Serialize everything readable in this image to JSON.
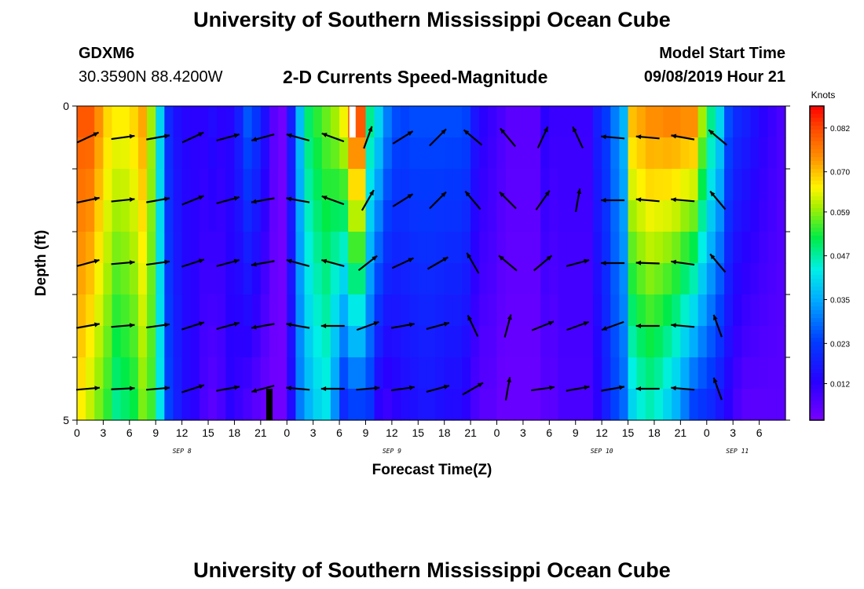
{
  "page": {
    "title_top": "University of Southern Mississippi Ocean Cube",
    "title_bottom": "University of Southern Mississippi Ocean Cube",
    "station_id": "GDXM6",
    "station_coords": "30.3590N 88.4200W",
    "chart_title": "2-D Currents Speed-Magnitude",
    "model_start_label": "Model Start Time",
    "model_start_value": "09/08/2019 Hour 21"
  },
  "chart_data": {
    "type": "heatmap",
    "title": "2-D Currents Speed-Magnitude",
    "xlabel": "Forecast Time(Z)",
    "ylabel": "Depth (ft)",
    "xlim": [
      0,
      81
    ],
    "ylim": [
      0,
      5
    ],
    "x_ticks": [
      {
        "hour": 0,
        "label": "0"
      },
      {
        "hour": 3,
        "label": "3"
      },
      {
        "hour": 6,
        "label": "6"
      },
      {
        "hour": 9,
        "label": "9"
      },
      {
        "hour": 12,
        "label": "12"
      },
      {
        "hour": 15,
        "label": "15"
      },
      {
        "hour": 18,
        "label": "18"
      },
      {
        "hour": 21,
        "label": "21"
      },
      {
        "hour": 24,
        "label": "0"
      },
      {
        "hour": 27,
        "label": "3"
      },
      {
        "hour": 30,
        "label": "6"
      },
      {
        "hour": 33,
        "label": "9"
      },
      {
        "hour": 36,
        "label": "12"
      },
      {
        "hour": 39,
        "label": "15"
      },
      {
        "hour": 42,
        "label": "18"
      },
      {
        "hour": 45,
        "label": "21"
      },
      {
        "hour": 48,
        "label": "0"
      },
      {
        "hour": 51,
        "label": "3"
      },
      {
        "hour": 54,
        "label": "6"
      },
      {
        "hour": 57,
        "label": "9"
      },
      {
        "hour": 60,
        "label": "12"
      },
      {
        "hour": 63,
        "label": "15"
      },
      {
        "hour": 66,
        "label": "18"
      },
      {
        "hour": 69,
        "label": "21"
      },
      {
        "hour": 72,
        "label": "0"
      },
      {
        "hour": 75,
        "label": "3"
      },
      {
        "hour": 78,
        "label": "6"
      }
    ],
    "date_labels": [
      {
        "hour": 12,
        "label": "SEP 8"
      },
      {
        "hour": 36,
        "label": "SEP 9"
      },
      {
        "hour": 60,
        "label": "SEP 10"
      },
      {
        "hour": 75.5,
        "label": "SEP 11"
      }
    ],
    "y_ticks": [
      {
        "depth": 0,
        "label": "0"
      },
      {
        "depth": 5,
        "label": "5"
      }
    ],
    "colorbar": {
      "unit": "Knots",
      "min": 0.002,
      "max": 0.088,
      "ticks": [
        0.082,
        0.07,
        0.059,
        0.047,
        0.035,
        0.023,
        0.012
      ],
      "tick_labels": [
        "0.082",
        "0.070",
        "0.059",
        "0.047",
        "0.035",
        "0.023",
        "0.012"
      ]
    },
    "time_hours": [
      0,
      1,
      2,
      3,
      4,
      5,
      6,
      7,
      8,
      9,
      10,
      11,
      12,
      13,
      14,
      15,
      16,
      17,
      18,
      19,
      20,
      21,
      22,
      23,
      24,
      25,
      26,
      27,
      28,
      29,
      30,
      31,
      32,
      33,
      34,
      35,
      36,
      37,
      38,
      39,
      40,
      41,
      42,
      43,
      44,
      45,
      46,
      47,
      48,
      49,
      50,
      51,
      52,
      53,
      54,
      55,
      56,
      57,
      58,
      59,
      60,
      61,
      62,
      63,
      64,
      65,
      66,
      67,
      68,
      69,
      70,
      71,
      72,
      73,
      74,
      75,
      76,
      77,
      78,
      79,
      80
    ],
    "speed_surface": [
      0.08,
      0.08,
      0.074,
      0.068,
      0.066,
      0.066,
      0.068,
      0.072,
      0.06,
      0.04,
      0.02,
      0.015,
      0.013,
      0.012,
      0.012,
      0.014,
      0.012,
      0.013,
      0.018,
      0.026,
      0.022,
      0.015,
      0.006,
      0.003,
      0.018,
      0.037,
      0.05,
      0.054,
      0.057,
      0.06,
      0.065,
      0.08,
      0.08,
      0.048,
      0.04,
      0.03,
      0.025,
      0.024,
      0.025,
      0.025,
      0.025,
      0.025,
      0.025,
      0.025,
      0.024,
      0.016,
      0.012,
      0.01,
      0.008,
      0.006,
      0.006,
      0.006,
      0.006,
      0.012,
      0.01,
      0.01,
      0.01,
      0.01,
      0.01,
      0.018,
      0.023,
      0.03,
      0.036,
      0.07,
      0.072,
      0.074,
      0.074,
      0.075,
      0.075,
      0.074,
      0.074,
      0.06,
      0.048,
      0.04,
      0.025,
      0.02,
      0.018,
      0.015,
      0.012,
      0.01,
      0.008
    ],
    "speed_bottom": [
      0.066,
      0.062,
      0.058,
      0.054,
      0.048,
      0.05,
      0.052,
      0.058,
      0.055,
      0.042,
      0.024,
      0.018,
      0.014,
      0.012,
      0.008,
      0.006,
      0.008,
      0.012,
      0.01,
      0.008,
      0.006,
      0.004,
      0.003,
      0.003,
      0.014,
      0.03,
      0.036,
      0.04,
      0.042,
      0.032,
      0.02,
      0.024,
      0.024,
      0.022,
      0.012,
      0.01,
      0.012,
      0.014,
      0.015,
      0.016,
      0.016,
      0.015,
      0.014,
      0.014,
      0.012,
      0.008,
      0.006,
      0.006,
      0.004,
      0.004,
      0.004,
      0.004,
      0.004,
      0.006,
      0.006,
      0.008,
      0.008,
      0.008,
      0.008,
      0.012,
      0.018,
      0.024,
      0.028,
      0.04,
      0.044,
      0.046,
      0.044,
      0.04,
      0.036,
      0.03,
      0.024,
      0.022,
      0.02,
      0.016,
      0.012,
      0.008,
      0.006,
      0.006,
      0.006,
      0.006,
      0.006
    ],
    "depth_levels": [
      0.5,
      1.5,
      2.5,
      3.5,
      4.5
    ],
    "vectors": [
      {
        "hour": 0,
        "angles": [
          25,
          12,
          15,
          10,
          5
        ]
      },
      {
        "hour": 4,
        "angles": [
          8,
          6,
          5,
          5,
          3
        ]
      },
      {
        "hour": 8,
        "angles": [
          10,
          10,
          8,
          8,
          5
        ]
      },
      {
        "hour": 12,
        "angles": [
          25,
          22,
          18,
          18,
          18
        ]
      },
      {
        "hour": 16,
        "angles": [
          15,
          15,
          15,
          15,
          10
        ]
      },
      {
        "hour": 20,
        "angles": [
          195,
          190,
          190,
          190,
          195
        ]
      },
      {
        "hour": 24,
        "angles": [
          165,
          170,
          165,
          170,
          175
        ]
      },
      {
        "hour": 28,
        "angles": [
          160,
          160,
          165,
          180,
          180
        ]
      },
      {
        "hour": 32,
        "angles": [
          70,
          60,
          38,
          20,
          5
        ]
      },
      {
        "hour": 36,
        "angles": [
          32,
          32,
          25,
          10,
          8
        ]
      },
      {
        "hour": 40,
        "angles": [
          45,
          45,
          30,
          15,
          15
        ]
      },
      {
        "hour": 44,
        "angles": [
          140,
          130,
          120,
          115,
          30
        ]
      },
      {
        "hour": 48,
        "angles": [
          130,
          135,
          140,
          75,
          80
        ]
      },
      {
        "hour": 52,
        "angles": [
          65,
          55,
          40,
          22,
          8
        ]
      },
      {
        "hour": 56,
        "angles": [
          115,
          80,
          15,
          20,
          10
        ]
      },
      {
        "hour": 60,
        "angles": [
          175,
          180,
          180,
          200,
          10
        ]
      },
      {
        "hour": 64,
        "angles": [
          175,
          175,
          178,
          180,
          180
        ]
      },
      {
        "hour": 68,
        "angles": [
          170,
          175,
          172,
          175,
          175
        ]
      },
      {
        "hour": 72,
        "angles": [
          140,
          130,
          130,
          110,
          110
        ]
      }
    ],
    "markers": [
      {
        "hour": 31.5,
        "depth_from": 0,
        "depth_to": 0.5,
        "color": "#ffffff"
      },
      {
        "hour": 22,
        "depth_from": 4.5,
        "depth_to": 5,
        "color": "#000000"
      }
    ]
  }
}
